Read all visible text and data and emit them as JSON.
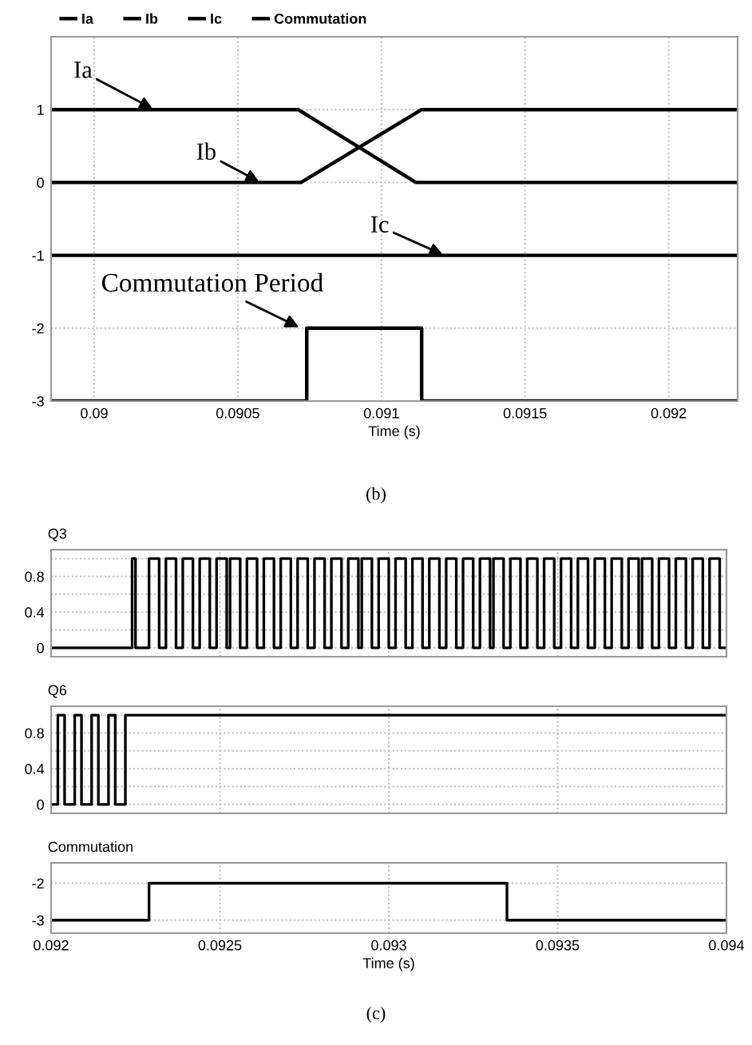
{
  "chart_data": [
    {
      "type": "line",
      "xlabel": "Time (s)",
      "xlim": [
        0.08985,
        0.09224
      ],
      "ylim": [
        -3,
        2
      ],
      "xticks": [
        0.09,
        0.0905,
        0.091,
        0.0915,
        0.092
      ],
      "yticks": [
        -3,
        -2,
        -1,
        0,
        1
      ],
      "grid": true,
      "legend": "top",
      "series": [
        {
          "name": "Ia",
          "color": "#000000",
          "x": [
            0.08985,
            0.09071,
            0.09112,
            0.09224
          ],
          "values": [
            1,
            1,
            0,
            0
          ]
        },
        {
          "name": "Ib",
          "color": "#000000",
          "x": [
            0.08985,
            0.09072,
            0.09114,
            0.09224
          ],
          "values": [
            0,
            0,
            1,
            1
          ]
        },
        {
          "name": "Ic",
          "color": "#000000",
          "x": [
            0.08985,
            0.09224
          ],
          "values": [
            -1,
            -1
          ]
        },
        {
          "name": "Commutation",
          "type": "step",
          "color": "#000000",
          "x": [
            0.08985,
            0.09074,
            0.09114,
            0.09224
          ],
          "values": [
            -3,
            -2,
            -3,
            -3
          ]
        }
      ],
      "annotations": [
        {
          "text": "Ia",
          "x": 0.09021,
          "y": 1
        },
        {
          "text": "Ib",
          "x": 0.09058,
          "y": 0
        },
        {
          "text": "Ic",
          "x": 0.09122,
          "y": -1
        },
        {
          "text": "Commutation Period",
          "x": 0.09072,
          "y": -2
        },
        "(b)"
      ]
    },
    {
      "type": "step",
      "title": "Q3",
      "xlim": [
        0.092,
        0.094
      ],
      "ylim": [
        -0.1,
        1.1
      ],
      "xticks": [
        0.092,
        0.0925,
        0.093,
        0.0935,
        0.094
      ],
      "yticks": [
        0,
        {
          "value": 0.2,
          "label": null
        },
        0.4,
        {
          "value": 0.6,
          "label": null
        },
        0.8,
        {
          "value": 1.0,
          "label": null
        }
      ],
      "grid": true,
      "tick_labels": "y",
      "series": [
        {
          "color": "#000000",
          "x": [
            0.092,
            0.09224,
            0.09225,
            0.09229,
            0.09232,
            0.09234,
            0.09237,
            0.09239,
            0.09242,
            0.09244,
            0.09247,
            0.09249,
            0.09252,
            0.09253,
            0.09256,
            0.09258,
            0.09261,
            0.09263,
            0.09266,
            0.09268,
            0.09271,
            0.09273,
            0.09276,
            0.09278,
            0.09281,
            0.09283,
            0.09286,
            0.09288,
            0.09291,
            0.09292,
            0.09295,
            0.09297,
            0.093,
            0.09302,
            0.09305,
            0.09307,
            0.0931,
            0.09312,
            0.09315,
            0.09317,
            0.0932,
            0.09322,
            0.09325,
            0.09327,
            0.0933,
            0.09331,
            0.09334,
            0.09336,
            0.09339,
            0.09341,
            0.09344,
            0.09346,
            0.09349,
            0.09351,
            0.09354,
            0.09356,
            0.09359,
            0.09361,
            0.09364,
            0.09366,
            0.09369,
            0.09371,
            0.09374,
            0.09375,
            0.09378,
            0.0938,
            0.09383,
            0.09385,
            0.09388,
            0.0939,
            0.09393,
            0.09395,
            0.09398,
            0.094
          ],
          "values": [
            0,
            1,
            0,
            1,
            0,
            1,
            0,
            1,
            0,
            1,
            0,
            1,
            0,
            1,
            0,
            1,
            0,
            1,
            0,
            1,
            0,
            1,
            0,
            1,
            0,
            1,
            0,
            1,
            0,
            1,
            0,
            1,
            0,
            1,
            0,
            1,
            0,
            1,
            0,
            1,
            0,
            1,
            0,
            1,
            0,
            1,
            0,
            1,
            0,
            1,
            0,
            1,
            0,
            1,
            0,
            1,
            0,
            1,
            0,
            1,
            0,
            1,
            0,
            1,
            0,
            1,
            0,
            1,
            0,
            1,
            0,
            1,
            0,
            0
          ]
        }
      ]
    },
    {
      "type": "step",
      "title": "Q6",
      "xlim": [
        0.092,
        0.094
      ],
      "ylim": [
        -0.1,
        1.1
      ],
      "xticks": [
        0.092,
        0.0925,
        0.093,
        0.0935,
        0.094
      ],
      "yticks": [
        0,
        {
          "value": 0.2,
          "label": null
        },
        0.4,
        {
          "value": 0.6,
          "label": null
        },
        0.8,
        {
          "value": 1.0,
          "label": null
        }
      ],
      "grid": true,
      "tick_labels": "y",
      "series": [
        {
          "color": "#000000",
          "x": [
            0.092,
            0.09202,
            0.09204,
            0.09207,
            0.09209,
            0.09212,
            0.09214,
            0.09217,
            0.09219,
            0.09222,
            0.094
          ],
          "values": [
            0,
            1,
            0,
            1,
            0,
            1,
            0,
            1,
            0,
            1,
            1
          ]
        }
      ]
    },
    {
      "type": "step",
      "title": "Commutation",
      "xlabel": "Time (s)",
      "xlim": [
        0.092,
        0.094
      ],
      "ylim": [
        -3.35,
        -1.45
      ],
      "xticks": [
        0.092,
        0.0925,
        0.093,
        0.0935,
        0.094
      ],
      "yticks": [
        -3,
        -2
      ],
      "grid": true,
      "series": [
        {
          "color": "#000000",
          "x": [
            0.092,
            0.09229,
            0.09335,
            0.094
          ],
          "values": [
            -3,
            -2,
            -3,
            -3
          ]
        }
      ],
      "annotations": [
        "(c)"
      ]
    }
  ]
}
